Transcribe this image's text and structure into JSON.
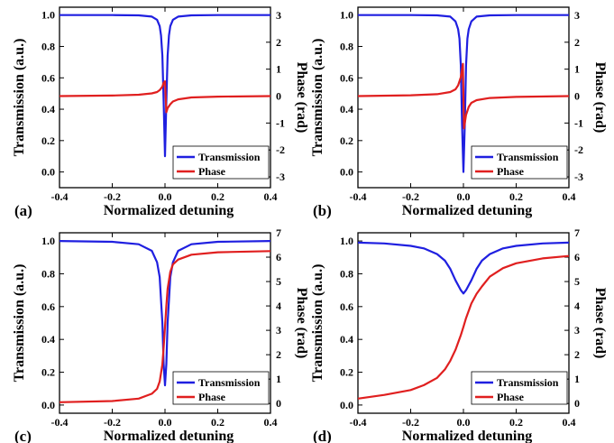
{
  "colors": {
    "transmission": "#1f1fe0",
    "phase": "#e01f1f",
    "frame": "#000000"
  },
  "chart_data": [
    {
      "type": "line",
      "panel_label": "(a)",
      "xlabel": "Normalized detuning",
      "ylabel": "Transmission (a.u.)",
      "y2label": "Phase (rad)",
      "xlim": [
        -0.4,
        0.4
      ],
      "ylim": [
        -0.1,
        1.05
      ],
      "y2lim": [
        -3.4,
        3.3
      ],
      "xticks": [
        "-0.4",
        "-0.2",
        "0.0",
        "0.2",
        "0.4"
      ],
      "yticks": [
        "0.0",
        "0.2",
        "0.4",
        "0.6",
        "0.8",
        "1.0"
      ],
      "y2ticks": [
        "-3",
        "-2",
        "-1",
        "0",
        "1",
        "2",
        "3"
      ],
      "legend": [
        "Transmission",
        "Phase"
      ],
      "legend_position": "bottom-right",
      "series": [
        {
          "name": "Transmission",
          "axis": "left",
          "x": [
            -0.4,
            -0.2,
            -0.1,
            -0.05,
            -0.03,
            -0.02,
            -0.015,
            -0.01,
            -0.005,
            0.0,
            0.005,
            0.01,
            0.015,
            0.02,
            0.03,
            0.05,
            0.1,
            0.2,
            0.4
          ],
          "values": [
            1.0,
            1.0,
            0.998,
            0.99,
            0.97,
            0.93,
            0.87,
            0.74,
            0.45,
            0.1,
            0.45,
            0.74,
            0.87,
            0.93,
            0.97,
            0.99,
            0.998,
            1.0,
            1.0
          ]
        },
        {
          "name": "Phase",
          "axis": "right",
          "x": [
            -0.4,
            -0.2,
            -0.1,
            -0.05,
            -0.03,
            -0.02,
            -0.01,
            -0.005,
            0.0,
            0.005,
            0.01,
            0.02,
            0.03,
            0.05,
            0.1,
            0.2,
            0.4
          ],
          "values": [
            0.0,
            0.02,
            0.05,
            0.1,
            0.15,
            0.22,
            0.35,
            0.5,
            0.55,
            -0.6,
            -0.45,
            -0.3,
            -0.2,
            -0.12,
            -0.05,
            -0.02,
            0.0
          ]
        }
      ]
    },
    {
      "type": "line",
      "panel_label": "(b)",
      "xlabel": "Normalized detuning",
      "ylabel": "Transmission (a.u.)",
      "y2label": "Phase (rad)",
      "xlim": [
        -0.4,
        0.4
      ],
      "ylim": [
        -0.1,
        1.05
      ],
      "y2lim": [
        -3.4,
        3.3
      ],
      "xticks": [
        "-0.4",
        "-0.2",
        "0.0",
        "0.2",
        "0.4"
      ],
      "yticks": [
        "0.0",
        "0.2",
        "0.4",
        "0.6",
        "0.8",
        "1.0"
      ],
      "y2ticks": [
        "-3",
        "-2",
        "-1",
        "0",
        "1",
        "2",
        "3"
      ],
      "legend": [
        "Transmission",
        "Phase"
      ],
      "legend_position": "bottom-right",
      "series": [
        {
          "name": "Transmission",
          "axis": "left",
          "x": [
            -0.4,
            -0.2,
            -0.1,
            -0.05,
            -0.03,
            -0.02,
            -0.015,
            -0.01,
            -0.005,
            0.0,
            0.005,
            0.01,
            0.015,
            0.02,
            0.03,
            0.05,
            0.1,
            0.2,
            0.4
          ],
          "values": [
            1.0,
            1.0,
            0.998,
            0.99,
            0.96,
            0.91,
            0.85,
            0.68,
            0.3,
            0.0,
            0.3,
            0.68,
            0.85,
            0.91,
            0.96,
            0.99,
            0.998,
            1.0,
            1.0
          ]
        },
        {
          "name": "Phase",
          "axis": "right",
          "x": [
            -0.4,
            -0.2,
            -0.1,
            -0.05,
            -0.03,
            -0.02,
            -0.01,
            -0.005,
            -0.002,
            0.0,
            0.002,
            0.005,
            0.01,
            0.02,
            0.03,
            0.05,
            0.1,
            0.2,
            0.4
          ],
          "values": [
            0.0,
            0.03,
            0.07,
            0.15,
            0.25,
            0.4,
            0.7,
            1.0,
            1.2,
            0.0,
            -1.2,
            -1.0,
            -0.7,
            -0.4,
            -0.25,
            -0.15,
            -0.07,
            -0.03,
            0.0
          ]
        }
      ]
    },
    {
      "type": "line",
      "panel_label": "(c)",
      "xlabel": "Normalized detuning",
      "ylabel": "Transmission (a.u.)",
      "y2label": "Phase (rad)",
      "xlim": [
        -0.4,
        0.4
      ],
      "ylim": [
        -0.05,
        1.05
      ],
      "y2lim": [
        -0.4,
        7.0
      ],
      "xticks": [
        "-0.4",
        "-0.2",
        "0.0",
        "0.2",
        "0.4"
      ],
      "yticks": [
        "0.0",
        "0.2",
        "0.4",
        "0.6",
        "0.8",
        "1.0"
      ],
      "y2ticks": [
        "0",
        "1",
        "2",
        "3",
        "4",
        "5",
        "6",
        "7"
      ],
      "legend": [
        "Transmission",
        "Phase"
      ],
      "legend_position": "bottom-right",
      "series": [
        {
          "name": "Transmission",
          "axis": "left",
          "x": [
            -0.4,
            -0.2,
            -0.1,
            -0.05,
            -0.03,
            -0.02,
            -0.01,
            -0.005,
            0.0,
            0.005,
            0.01,
            0.02,
            0.03,
            0.05,
            0.1,
            0.2,
            0.4
          ],
          "values": [
            1.0,
            0.995,
            0.98,
            0.94,
            0.87,
            0.78,
            0.5,
            0.25,
            0.12,
            0.25,
            0.5,
            0.78,
            0.87,
            0.94,
            0.98,
            0.995,
            1.0
          ]
        },
        {
          "name": "Phase",
          "axis": "right",
          "x": [
            -0.4,
            -0.2,
            -0.1,
            -0.05,
            -0.03,
            -0.02,
            -0.01,
            -0.005,
            0.0,
            0.005,
            0.01,
            0.02,
            0.03,
            0.05,
            0.1,
            0.2,
            0.4
          ],
          "values": [
            0.05,
            0.1,
            0.2,
            0.4,
            0.6,
            0.9,
            1.6,
            2.3,
            3.14,
            4.0,
            4.7,
            5.4,
            5.7,
            5.9,
            6.1,
            6.2,
            6.25
          ]
        }
      ]
    },
    {
      "type": "line",
      "panel_label": "(d)",
      "xlabel": "Normalized detuning",
      "ylabel": "Transmission (a.u.)",
      "y2label": "Phase (rad)",
      "xlim": [
        -0.4,
        0.4
      ],
      "ylim": [
        -0.05,
        1.05
      ],
      "y2lim": [
        -0.4,
        7.0
      ],
      "xticks": [
        "-0.4",
        "-0.2",
        "0.0",
        "0.2",
        "0.4"
      ],
      "yticks": [
        "0.0",
        "0.2",
        "0.4",
        "0.6",
        "0.8",
        "1.0"
      ],
      "y2ticks": [
        "0",
        "1",
        "2",
        "3",
        "4",
        "5",
        "6",
        "7"
      ],
      "legend": [
        "Transmission",
        "Phase"
      ],
      "legend_position": "bottom-right",
      "series": [
        {
          "name": "Transmission",
          "axis": "left",
          "x": [
            -0.4,
            -0.3,
            -0.2,
            -0.15,
            -0.1,
            -0.07,
            -0.05,
            -0.03,
            -0.01,
            0.0,
            0.01,
            0.03,
            0.05,
            0.07,
            0.1,
            0.15,
            0.2,
            0.3,
            0.4
          ],
          "values": [
            0.99,
            0.985,
            0.97,
            0.955,
            0.92,
            0.88,
            0.83,
            0.76,
            0.7,
            0.68,
            0.7,
            0.76,
            0.83,
            0.88,
            0.92,
            0.955,
            0.97,
            0.985,
            0.99
          ]
        },
        {
          "name": "Phase",
          "axis": "right",
          "x": [
            -0.4,
            -0.3,
            -0.2,
            -0.15,
            -0.1,
            -0.07,
            -0.05,
            -0.03,
            -0.01,
            0.0,
            0.01,
            0.03,
            0.05,
            0.07,
            0.1,
            0.15,
            0.2,
            0.3,
            0.4
          ],
          "values": [
            0.2,
            0.35,
            0.55,
            0.75,
            1.05,
            1.4,
            1.75,
            2.2,
            2.8,
            3.14,
            3.5,
            4.1,
            4.5,
            4.8,
            5.2,
            5.55,
            5.75,
            5.95,
            6.05
          ]
        }
      ]
    }
  ]
}
